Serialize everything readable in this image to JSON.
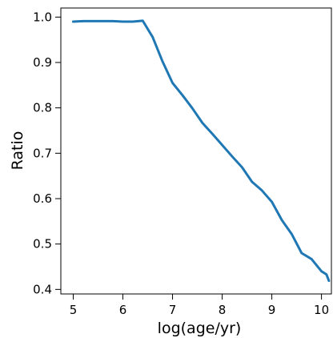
{
  "chart_data": {
    "type": "line",
    "title": "",
    "xlabel": "log(age/yr)",
    "ylabel": "Ratio",
    "xlim": [
      4.75,
      10.2
    ],
    "ylim": [
      0.39,
      1.02
    ],
    "xticks": [
      5,
      6,
      7,
      8,
      9,
      10
    ],
    "yticks": [
      0.4,
      0.5,
      0.6,
      0.7,
      0.8,
      0.9,
      1.0
    ],
    "xtick_labels": [
      "5",
      "6",
      "7",
      "8",
      "9",
      "10"
    ],
    "ytick_labels": [
      "0.4",
      "0.5",
      "0.6",
      "0.7",
      "0.8",
      "0.9",
      "1.0"
    ],
    "grid": false,
    "legend": "none",
    "series": [
      {
        "color": "#1f77b4",
        "x": [
          5.0,
          5.2,
          5.4,
          5.6,
          5.8,
          6.0,
          6.2,
          6.4,
          6.6,
          6.8,
          7.0,
          7.2,
          7.4,
          7.6,
          7.8,
          8.0,
          8.2,
          8.4,
          8.6,
          8.8,
          9.0,
          9.2,
          9.4,
          9.6,
          9.8,
          10.0,
          10.1,
          10.15
        ],
        "y": [
          0.99,
          0.991,
          0.991,
          0.991,
          0.991,
          0.99,
          0.99,
          0.992,
          0.956,
          0.902,
          0.855,
          0.828,
          0.799,
          0.767,
          0.743,
          0.718,
          0.693,
          0.669,
          0.637,
          0.618,
          0.593,
          0.553,
          0.522,
          0.48,
          0.467,
          0.44,
          0.433,
          0.419
        ]
      }
    ]
  }
}
